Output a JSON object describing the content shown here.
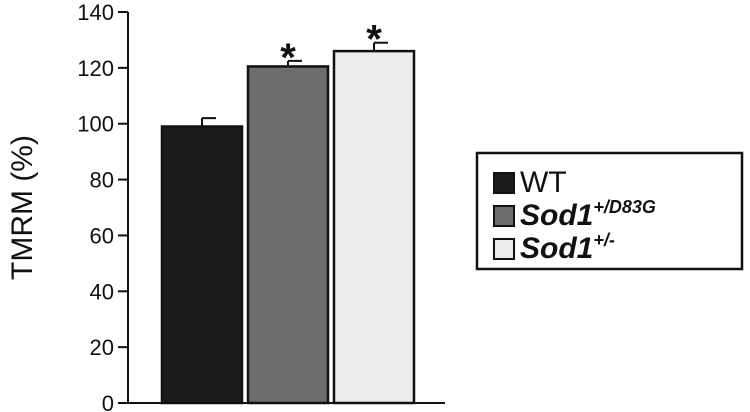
{
  "chart_data": {
    "type": "bar",
    "ylabel": "TMRM (%)",
    "xlabel": "",
    "ylim": [
      0,
      140
    ],
    "yticks": [
      0,
      20,
      40,
      60,
      80,
      100,
      120,
      140
    ],
    "grid": false,
    "legend_position": "right",
    "series": [
      {
        "name_base": "WT",
        "name_sup": "",
        "italic": false,
        "value": 99,
        "error": 3,
        "significance": "",
        "color": "#1c1c1c"
      },
      {
        "name_base": "Sod1",
        "name_sup": "+/D83G",
        "italic": true,
        "value": 120.5,
        "error": 2,
        "significance": "*",
        "color": "#6e6e6e"
      },
      {
        "name_base": "Sod1",
        "name_sup": "+/-",
        "italic": true,
        "value": 126,
        "error": 3,
        "significance": "*",
        "color": "#ececec"
      }
    ]
  }
}
